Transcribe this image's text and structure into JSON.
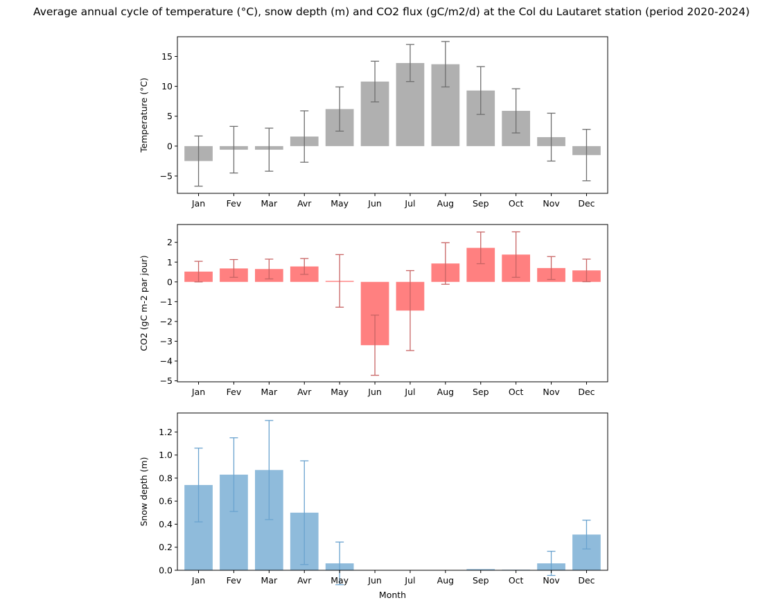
{
  "title": "Average annual cycle of temperature (°C), snow depth (m) and CO2 flux (gC/m2/d) at the Col du Lautaret station (period 2020-2024)",
  "chart_data": [
    {
      "type": "bar",
      "categories": [
        "Jan",
        "Fev",
        "Mar",
        "Avr",
        "May",
        "Jun",
        "Jul",
        "Aug",
        "Sep",
        "Oct",
        "Nov",
        "Dec"
      ],
      "values": [
        -2.5,
        -0.6,
        -0.6,
        1.6,
        6.2,
        10.8,
        13.9,
        13.7,
        9.3,
        5.9,
        1.5,
        -1.5
      ],
      "errors": [
        4.2,
        3.9,
        3.6,
        4.3,
        3.7,
        3.4,
        3.1,
        3.8,
        4.0,
        3.7,
        4.0,
        4.3
      ],
      "xlabel": "",
      "ylabel": "Temperature (°C)",
      "ylim": [
        -7.9,
        18.3
      ],
      "yticks": [
        -5,
        0,
        5,
        10,
        15
      ],
      "ytick_labels": [
        "−5",
        "0",
        "5",
        "10",
        "15"
      ],
      "bar_color": "#b0b0b0",
      "err_color": "#6e6e6e",
      "grid": false
    },
    {
      "type": "bar",
      "categories": [
        "Jan",
        "Fev",
        "Mar",
        "Avr",
        "May",
        "Jun",
        "Jul",
        "Aug",
        "Sep",
        "Oct",
        "Nov",
        "Dec"
      ],
      "values": [
        0.52,
        0.68,
        0.65,
        0.78,
        0.05,
        -3.2,
        -1.45,
        0.93,
        1.72,
        1.38,
        0.7,
        0.58
      ],
      "errors": [
        0.52,
        0.45,
        0.5,
        0.4,
        1.33,
        1.52,
        2.02,
        1.05,
        0.8,
        1.15,
        0.58,
        0.57
      ],
      "xlabel": "",
      "ylabel": "CO2 (gC m-2 par jour)",
      "ylim": [
        -5.05,
        2.9
      ],
      "yticks": [
        -5,
        -4,
        -3,
        -2,
        -1,
        0,
        1,
        2
      ],
      "ytick_labels": [
        "−5",
        "−4",
        "−3",
        "−2",
        "−1",
        "0",
        "1",
        "2"
      ],
      "bar_color": "#ff8080",
      "err_color": "#c86464",
      "grid": false
    },
    {
      "type": "bar",
      "categories": [
        "Jan",
        "Fev",
        "Mar",
        "Avr",
        "May",
        "Jun",
        "Jul",
        "Aug",
        "Sep",
        "Oct",
        "Nov",
        "Dec"
      ],
      "values": [
        0.74,
        0.83,
        0.87,
        0.5,
        0.06,
        0.0,
        0.0,
        0.0,
        0.01,
        0.005,
        0.06,
        0.31
      ],
      "errors": [
        0.32,
        0.32,
        0.43,
        0.45,
        0.185,
        0.0,
        0.0,
        0.0,
        0.0,
        0.0,
        0.105,
        0.125
      ],
      "xlabel": "Month",
      "ylabel": "Snow depth (m)",
      "ylim": [
        0,
        1.365
      ],
      "yticks": [
        0.0,
        0.2,
        0.4,
        0.6,
        0.8,
        1.0,
        1.2
      ],
      "ytick_labels": [
        "0.0",
        "0.2",
        "0.4",
        "0.6",
        "0.8",
        "1.0",
        "1.2"
      ],
      "bar_color": "#8fbbdb",
      "err_color": "#6aa3cf",
      "grid": false
    }
  ]
}
